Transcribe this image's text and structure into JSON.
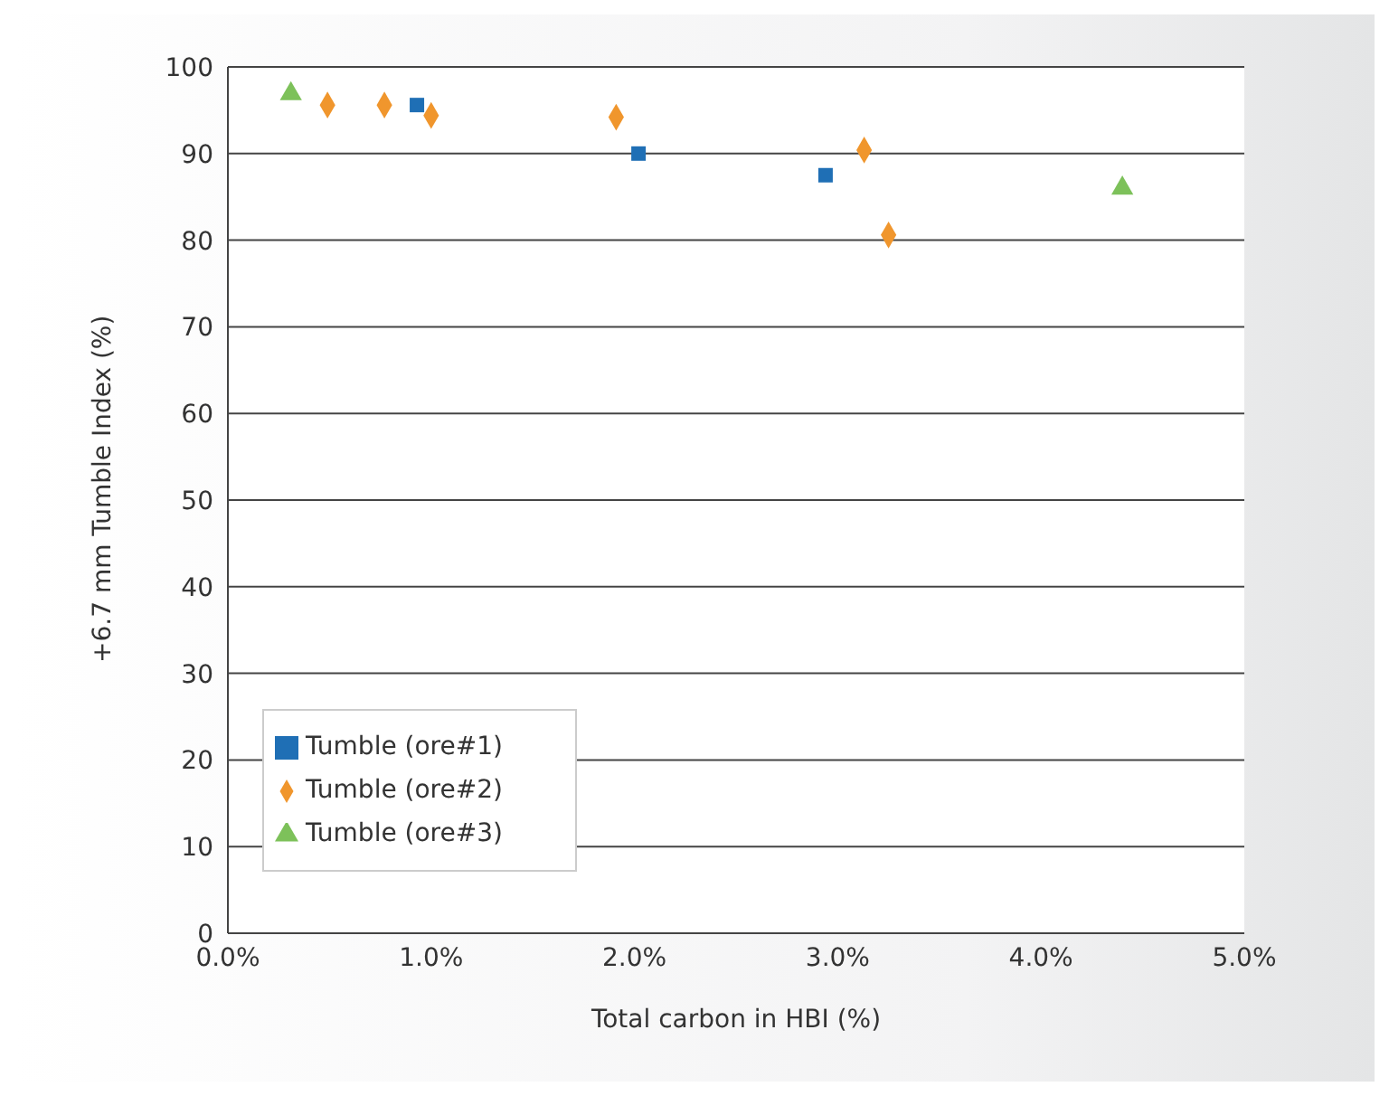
{
  "chart_data": {
    "type": "scatter",
    "xlabel": "Total carbon in HBI (%)",
    "ylabel": "+6.7 mm Tumble Index  (%)",
    "xlim": [
      0,
      5
    ],
    "xticks": [
      {
        "value": 0,
        "label": "0.0%"
      },
      {
        "value": 1,
        "label": "1.0%"
      },
      {
        "value": 2,
        "label": "2.0%"
      },
      {
        "value": 3,
        "label": "3.0%"
      },
      {
        "value": 4,
        "label": "4.0%"
      },
      {
        "value": 5,
        "label": "5.0%"
      }
    ],
    "ylim": [
      0,
      100
    ],
    "yticks": [
      0,
      10,
      20,
      30,
      40,
      50,
      60,
      70,
      80,
      90,
      100
    ],
    "grid": "y",
    "legend": "bottom left",
    "series": [
      {
        "name": "Tumble (ore#1)",
        "color": "#1f6fb5",
        "marker": "square",
        "x": [
          0.93,
          2.02,
          2.94
        ],
        "values": [
          95.6,
          90.0,
          87.5
        ]
      },
      {
        "name": "Tumble (ore#2)",
        "color": "#f0962d",
        "marker": "diamond",
        "x": [
          0.49,
          0.77,
          1.0,
          1.91,
          3.13,
          3.25
        ],
        "values": [
          95.6,
          95.6,
          94.4,
          94.2,
          90.4,
          80.6
        ]
      },
      {
        "name": "Tumble (ore#3)",
        "color": "#7dc15a",
        "marker": "triangle",
        "x": [
          0.31,
          4.4
        ],
        "values": [
          96.9,
          86.0
        ]
      }
    ]
  }
}
